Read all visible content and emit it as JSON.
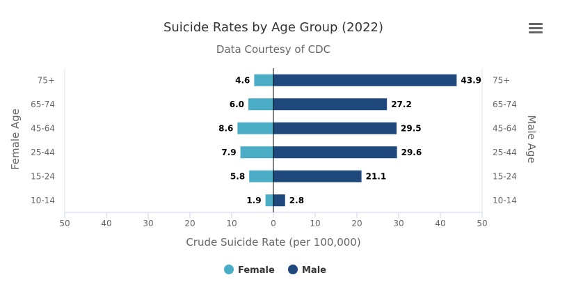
{
  "chart_data": {
    "type": "bar",
    "orientation": "horizontal",
    "title": "Suicide Rates by Age Group (2022)",
    "subtitle": "Data Courtesy of CDC",
    "xlabel": "Crude Suicide Rate (per 100,000)",
    "ylabel_left": "Female Age",
    "ylabel_right": "Male Age",
    "categories": [
      "75+",
      "65-74",
      "45-64",
      "25-44",
      "15-24",
      "10-14"
    ],
    "xlim": [
      -50,
      50
    ],
    "x_ticks": [
      "50",
      "40",
      "30",
      "20",
      "10",
      "0",
      "10",
      "20",
      "30",
      "40",
      "50"
    ],
    "grid": false,
    "legend_position": "bottom",
    "series": [
      {
        "name": "Female",
        "color": "#4BACC6",
        "side": "left",
        "values": [
          4.6,
          6.0,
          8.6,
          7.9,
          5.8,
          1.9
        ],
        "labels": [
          "4.6",
          "6.0",
          "8.6",
          "7.9",
          "5.8",
          "1.9"
        ]
      },
      {
        "name": "Male",
        "color": "#1F497D",
        "side": "right",
        "values": [
          43.9,
          27.2,
          29.5,
          29.6,
          21.1,
          2.8
        ],
        "labels": [
          "43.9",
          "27.2",
          "29.5",
          "29.6",
          "21.1",
          "2.8"
        ]
      }
    ]
  },
  "menu": {
    "icon": "hamburger-menu-icon"
  }
}
